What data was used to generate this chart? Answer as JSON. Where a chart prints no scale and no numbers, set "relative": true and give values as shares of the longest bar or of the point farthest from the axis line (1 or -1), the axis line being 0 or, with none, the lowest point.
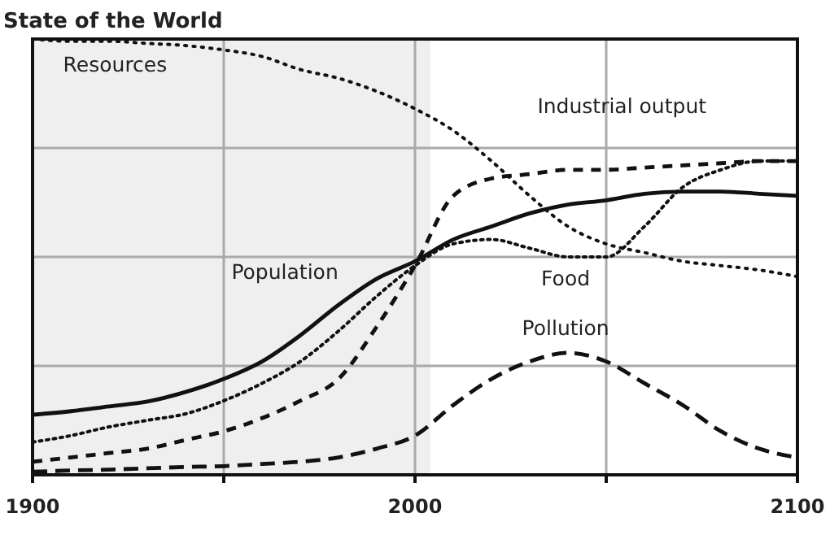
{
  "chart_data": {
    "type": "line",
    "title": "State of the World",
    "relative": true,
    "x": [
      1900,
      1910,
      1920,
      1930,
      1940,
      1950,
      1960,
      1970,
      1980,
      1990,
      2000,
      2010,
      2020,
      2030,
      2040,
      2050,
      2060,
      2070,
      2080,
      2090,
      2100
    ],
    "xlim": [
      1900,
      2100
    ],
    "xticks": [
      1900,
      {
        "value": 1950,
        "label": null
      },
      2000,
      {
        "value": 2050,
        "label": null
      },
      2100
    ],
    "grid": true,
    "legend": false,
    "marker": "none",
    "bands": [
      {
        "axis": "x",
        "from": 1900,
        "to": 2004,
        "label": null,
        "color": "#efefef"
      }
    ],
    "series": [
      {
        "name": "Resources",
        "color": "#111111",
        "line_style": "dotted",
        "values": [
          1.0,
          0.995,
          0.995,
          0.99,
          0.985,
          0.975,
          0.96,
          0.93,
          0.91,
          0.88,
          0.84,
          0.79,
          0.72,
          0.64,
          0.57,
          0.53,
          0.51,
          0.49,
          0.48,
          0.47,
          0.455
        ]
      },
      {
        "name": "Industrial output",
        "color": "#111111",
        "line_style": "dashed",
        "values": [
          0.03,
          0.04,
          0.05,
          0.06,
          0.08,
          0.1,
          0.13,
          0.17,
          0.22,
          0.34,
          0.48,
          0.64,
          0.68,
          0.69,
          0.7,
          0.7,
          0.705,
          0.71,
          0.715,
          0.72,
          0.72
        ]
      },
      {
        "name": "Population",
        "color": "#111111",
        "line_style": "solid",
        "values": [
          0.138,
          0.146,
          0.157,
          0.168,
          0.19,
          0.22,
          0.26,
          0.32,
          0.39,
          0.45,
          0.49,
          0.54,
          0.57,
          0.6,
          0.62,
          0.63,
          0.645,
          0.65,
          0.65,
          0.645,
          0.64
        ]
      },
      {
        "name": "Food",
        "color": "#111111",
        "line_style": "dotted",
        "values": [
          0.075,
          0.09,
          0.11,
          0.125,
          0.14,
          0.17,
          0.21,
          0.26,
          0.33,
          0.41,
          0.48,
          0.53,
          0.54,
          0.52,
          0.5,
          0.5,
          0.57,
          0.66,
          0.7,
          0.72,
          0.72
        ]
      },
      {
        "name": "Pollution",
        "color": "#111111",
        "line_style": "dashed",
        "values": [
          0.007,
          0.01,
          0.012,
          0.015,
          0.018,
          0.02,
          0.025,
          0.03,
          0.04,
          0.06,
          0.09,
          0.16,
          0.22,
          0.26,
          0.28,
          0.26,
          0.21,
          0.16,
          0.1,
          0.06,
          0.04
        ]
      }
    ]
  }
}
